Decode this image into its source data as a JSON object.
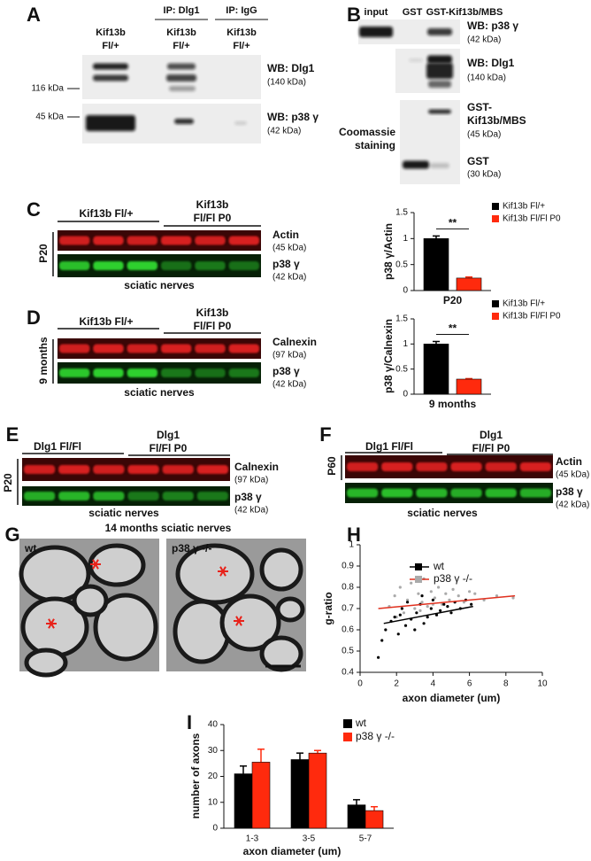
{
  "panels": [
    {
      "label": "A",
      "columns": [
        {
          "lines": [
            "Kif13b",
            "Fl/+"
          ]
        },
        {
          "ip": "IP: Dlg1",
          "lines": [
            "Kif13b",
            "Fl/+"
          ]
        },
        {
          "ip": "IP: IgG",
          "lines": [
            "Kif13b",
            "Fl/+"
          ]
        }
      ],
      "markers": [
        "116 kDa",
        "45 kDa"
      ],
      "blots": [
        {
          "name": [
            "WB: Dlg1"
          ],
          "size": "(140 kDa)"
        },
        {
          "name": [
            "WB: p38 γ"
          ],
          "size": "(42 kDa)"
        }
      ]
    },
    {
      "label": "B",
      "columns": [
        "input",
        "GST",
        "GST-Kif13b/MBS"
      ],
      "blots": [
        {
          "name": [
            "WB: p38 γ"
          ],
          "size": "(42 kDa)"
        },
        {
          "name": [
            "WB: Dlg1"
          ],
          "size": "(140 kDa)"
        },
        {
          "name": [
            "GST-",
            "Kif13b/MBS"
          ],
          "size": "(45 kDa)"
        },
        {
          "name": [
            "GST"
          ],
          "size": "(30 kDa)"
        }
      ],
      "side_label": [
        "Coomassie",
        "staining"
      ]
    },
    {
      "label": "C",
      "groups": [
        [
          "Kif13b Fl/+"
        ],
        [
          "Kif13b",
          "Fl/Fl P0"
        ]
      ],
      "time": "P20",
      "blots": [
        {
          "name": "Actin",
          "size": "(45 kDa)"
        },
        {
          "name": "p38 γ",
          "size": "(42 kDa)"
        }
      ],
      "tissue": "sciatic nerves"
    },
    {
      "label": "D",
      "groups": [
        [
          "Kif13b Fl/+"
        ],
        [
          "Kif13b",
          "Fl/Fl P0"
        ]
      ],
      "time": "9 months",
      "blots": [
        {
          "name": "Calnexin",
          "size": "(97 kDa)"
        },
        {
          "name": "p38 γ",
          "size": "(42 kDa)"
        }
      ],
      "tissue": "sciatic nerves"
    },
    {
      "label": "E",
      "groups": [
        [
          "Dlg1 Fl/Fl"
        ],
        [
          "Dlg1",
          "Fl/Fl P0"
        ]
      ],
      "time": "P20",
      "blots": [
        {
          "name": "Calnexin",
          "size": "(97 kDa)"
        },
        {
          "name": "p38 γ",
          "size": "(42 kDa)"
        }
      ],
      "tissue": "sciatic nerves"
    },
    {
      "label": "F",
      "groups": [
        [
          "Dlg1 Fl/Fl"
        ],
        [
          "Dlg1",
          "Fl/Fl P0"
        ]
      ],
      "time": "P60",
      "blots": [
        {
          "name": "Actin",
          "size": "(45 kDa)"
        },
        {
          "name": "p38 γ",
          "size": "(42 kDa)"
        }
      ],
      "tissue": "sciatic nerves"
    },
    {
      "label": "G",
      "title": "14 months sciatic nerves",
      "images": [
        "wt",
        "p38 γ -/-"
      ]
    },
    {
      "label": "H"
    },
    {
      "label": "I"
    }
  ],
  "chart_data": [
    {
      "type": "bar",
      "ylabel": "p38 γ/Actin",
      "categories": [
        "P20"
      ],
      "annotation": "**",
      "series": [
        {
          "name": "Kif13b Fl/+",
          "color": "#000000",
          "values": [
            1.0
          ],
          "errors": [
            0.05
          ]
        },
        {
          "name": "Kif13b Fl/Fl P0",
          "color": "#ff2a0d",
          "values": [
            0.24
          ],
          "errors": [
            0.02
          ]
        }
      ],
      "ylim": [
        0,
        1.5
      ],
      "yticks": [
        0,
        0.5,
        1,
        1.5
      ]
    },
    {
      "type": "bar",
      "ylabel": "p38 γ/Calnexin",
      "categories": [
        "9 months"
      ],
      "annotation": "**",
      "series": [
        {
          "name": "Kif13b Fl/+",
          "color": "#000000",
          "values": [
            1.0
          ],
          "errors": [
            0.05
          ]
        },
        {
          "name": "Kif13b Fl/Fl P0",
          "color": "#ff2a0d",
          "values": [
            0.3
          ],
          "errors": [
            0.01
          ]
        }
      ],
      "ylim": [
        0,
        1.5
      ],
      "yticks": [
        0,
        0.5,
        1,
        1.5
      ]
    },
    {
      "type": "scatter",
      "xlabel": "axon diameter (um)",
      "ylabel": "g-ratio",
      "xlim": [
        0,
        10
      ],
      "xticks": [
        0,
        2,
        4,
        6,
        8,
        10
      ],
      "ylim": [
        0.4,
        1
      ],
      "yticks": [
        0.4,
        0.5,
        0.6,
        0.7,
        0.8,
        0.9,
        1
      ],
      "series": [
        {
          "name": "p38 γ -/-",
          "color": "#aaaaaa",
          "x": [
            1.6,
            1.9,
            2.2,
            2.4,
            2.6,
            2.8,
            3.0,
            3.2,
            3.4,
            3.5,
            3.7,
            3.9,
            4.1,
            4.3,
            4.5,
            4.7,
            4.9,
            5.1,
            5.4,
            5.7,
            6.0,
            6.3,
            6.8,
            7.5,
            8.4,
            2.0,
            3.3,
            4.0
          ],
          "y": [
            0.71,
            0.76,
            0.8,
            0.68,
            0.74,
            0.82,
            0.7,
            0.77,
            0.73,
            0.84,
            0.71,
            0.78,
            0.75,
            0.8,
            0.72,
            0.77,
            0.74,
            0.79,
            0.76,
            0.73,
            0.78,
            0.77,
            0.74,
            0.76,
            0.75,
            0.66,
            0.69,
            0.72
          ],
          "trend": {
            "color": "#e0301e",
            "x": [
              1,
              8.5
            ],
            "y": [
              0.7,
              0.76
            ]
          }
        },
        {
          "name": "wt",
          "color": "#000000",
          "x": [
            1.0,
            1.4,
            1.7,
            1.9,
            2.1,
            2.3,
            2.5,
            2.6,
            2.8,
            3.0,
            3.1,
            3.3,
            3.5,
            3.7,
            3.9,
            4.0,
            4.2,
            4.4,
            4.6,
            4.8,
            5.0,
            5.2,
            5.5,
            5.8,
            6.1,
            1.2,
            2.2,
            3.4
          ],
          "y": [
            0.47,
            0.6,
            0.64,
            0.66,
            0.58,
            0.7,
            0.62,
            0.73,
            0.65,
            0.6,
            0.68,
            0.72,
            0.63,
            0.66,
            0.7,
            0.74,
            0.67,
            0.69,
            0.72,
            0.71,
            0.68,
            0.73,
            0.7,
            0.74,
            0.72,
            0.55,
            0.67,
            0.76
          ],
          "trend": {
            "color": "#000000",
            "x": [
              1.3,
              6.2
            ],
            "y": [
              0.63,
              0.71
            ]
          }
        }
      ]
    },
    {
      "type": "bar",
      "ylabel": "number of axons",
      "xlabel": "axon diameter (um)",
      "categories": [
        "1-3",
        "3-5",
        "5-7"
      ],
      "series": [
        {
          "name": "wt",
          "color": "#000000",
          "values": [
            21,
            26.5,
            9
          ],
          "errors": [
            3,
            2.5,
            2
          ]
        },
        {
          "name": "p38 γ -/-",
          "color": "#ff2a0d",
          "values": [
            25.5,
            29,
            6.8
          ],
          "errors": [
            5,
            1,
            1.5
          ]
        }
      ],
      "ylim": [
        0,
        40
      ],
      "yticks": [
        0,
        10,
        20,
        30,
        40
      ]
    }
  ]
}
